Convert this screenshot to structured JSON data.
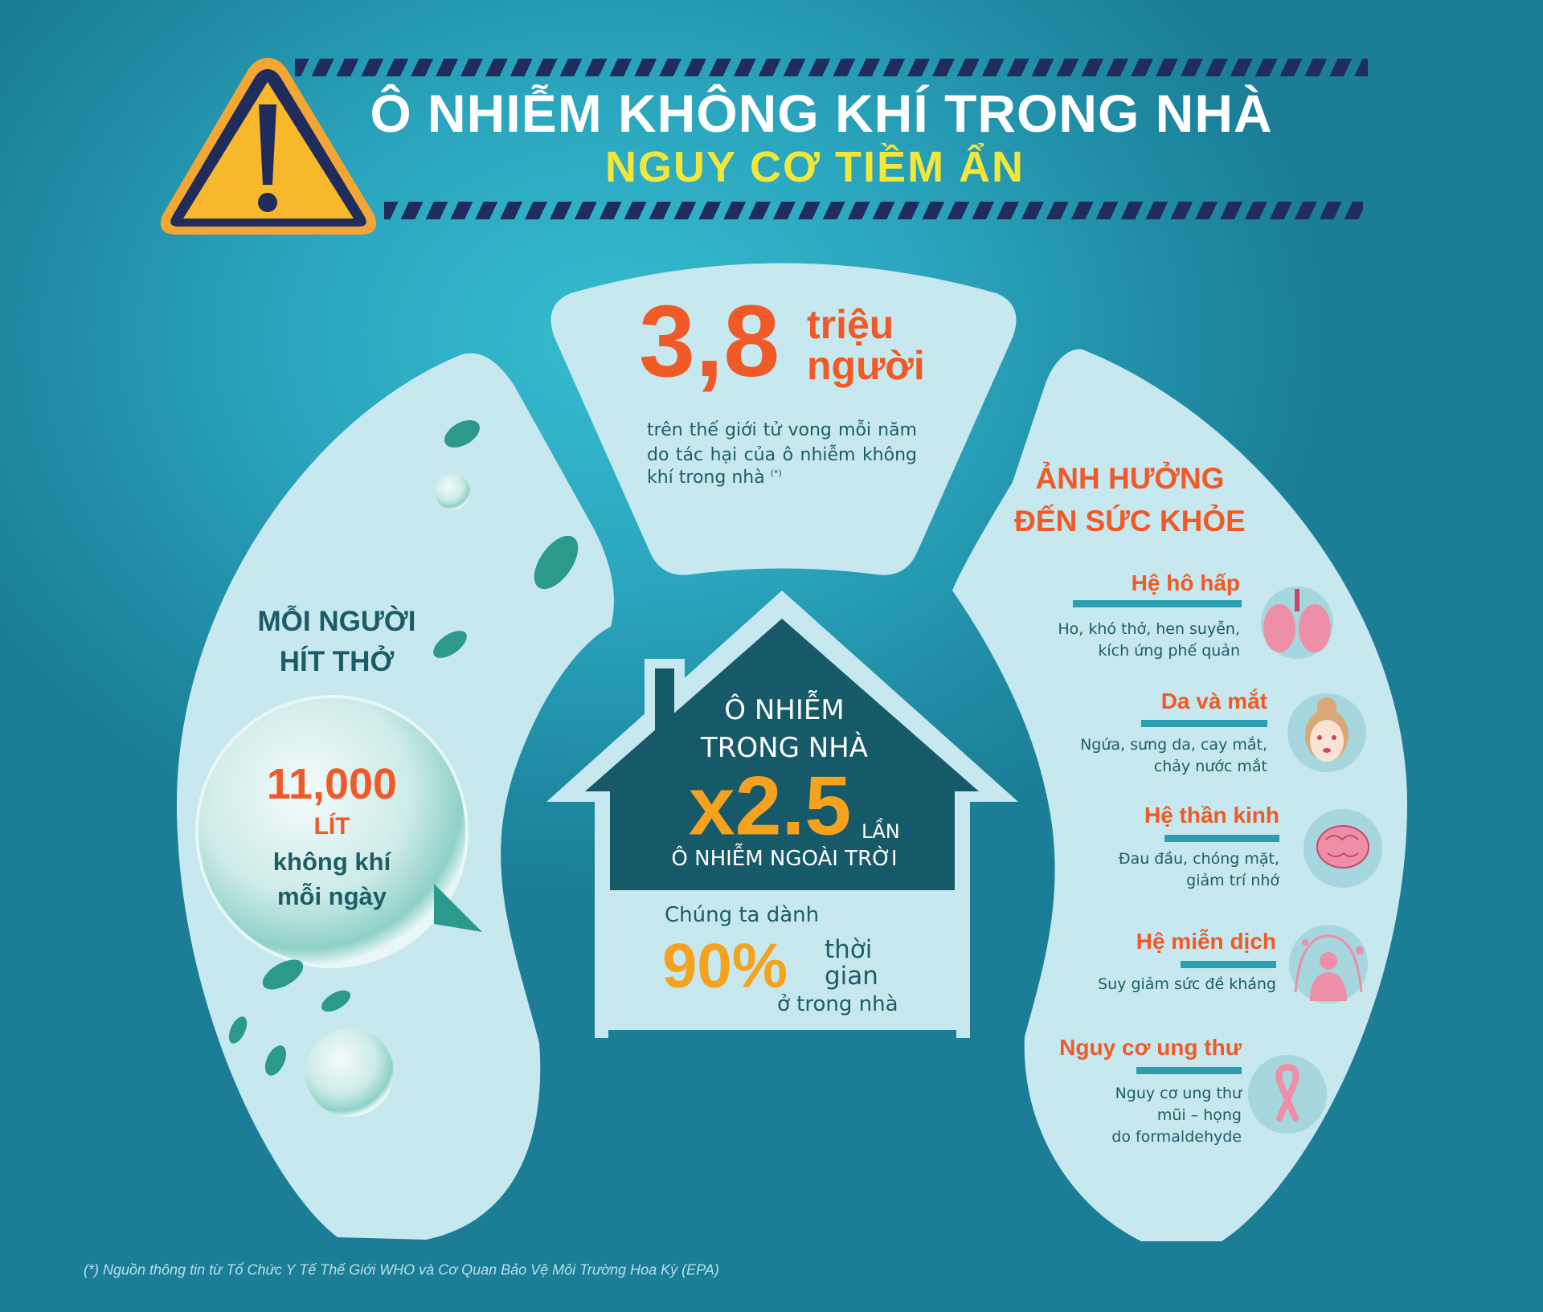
{
  "header": {
    "title": "Ô NHIỄM KHÔNG KHÍ TRONG NHÀ",
    "subtitle": "NGUY CƠ TIỀM ẨN",
    "icon": "warning-icon"
  },
  "deaths": {
    "number": "3,8",
    "unit_line1": "triệu",
    "unit_line2": "người",
    "description_lines": [
      "trên thế giới tử vong mỗi năm",
      "do tác hại của ô nhiễm không",
      "khí trong nhà"
    ],
    "footnote_mark": "(*)"
  },
  "breathing": {
    "heading_line1": "MỖI NGƯỜI",
    "heading_line2": "HÍT THỞ",
    "amount": "11,000",
    "unit": "LÍT",
    "line1": "không khí",
    "line2": "mỗi ngày"
  },
  "house": {
    "line1": "Ô NHIỄM",
    "line2": "TRONG NHÀ",
    "multiplier": "x2.5",
    "multiplier_unit": "LẦN",
    "comparison": "Ô NHIỄM NGOÀI TRỜI",
    "time_intro": "Chúng ta dành",
    "time_percent": "90%",
    "time_word1": "thời",
    "time_word2": "gian",
    "time_outro": "ở trong nhà"
  },
  "health": {
    "heading_line1": "ẢNH HƯỞNG",
    "heading_line2": "ĐẾN SỨC KHỎE",
    "items": [
      {
        "title": "Hệ hô hấp",
        "lines": [
          "Ho, khó thở, hen suyễn,",
          "kích ứng phế quản"
        ],
        "icon": "lungs-icon"
      },
      {
        "title": "Da và mắt",
        "lines": [
          "Ngứa, sưng da, cay mắt,",
          "chảy nước mắt"
        ],
        "icon": "irritated-face-icon"
      },
      {
        "title": "Hệ thần kinh",
        "lines": [
          "Đau đầu, chóng mặt,",
          "giảm trí nhớ"
        ],
        "icon": "brain-icon"
      },
      {
        "title": "Hệ miễn dịch",
        "lines": [
          "Suy giảm sức đề kháng"
        ],
        "icon": "immune-shield-person-icon"
      },
      {
        "title": "Nguy cơ ung thư",
        "lines": [
          "Nguy cơ ung thư",
          "mũi – họng",
          "do formaldehyde"
        ],
        "icon": "cancer-ribbon-icon"
      }
    ]
  },
  "footer": {
    "source": "(*) Nguồn thông tin từ Tổ Chức Y Tế Thế Giới WHO và Cơ Quan Bảo Vệ Môi Trường Hoa Kỳ (EPA)"
  },
  "colors": {
    "accent_orange": "#ef5a28",
    "accent_yellow": "#f5a21f",
    "title_yellow": "#f2e73a",
    "panel_light": "#c6e8ee",
    "house_dark": "#165a6a",
    "stripe_navy": "#1f2c5c"
  }
}
